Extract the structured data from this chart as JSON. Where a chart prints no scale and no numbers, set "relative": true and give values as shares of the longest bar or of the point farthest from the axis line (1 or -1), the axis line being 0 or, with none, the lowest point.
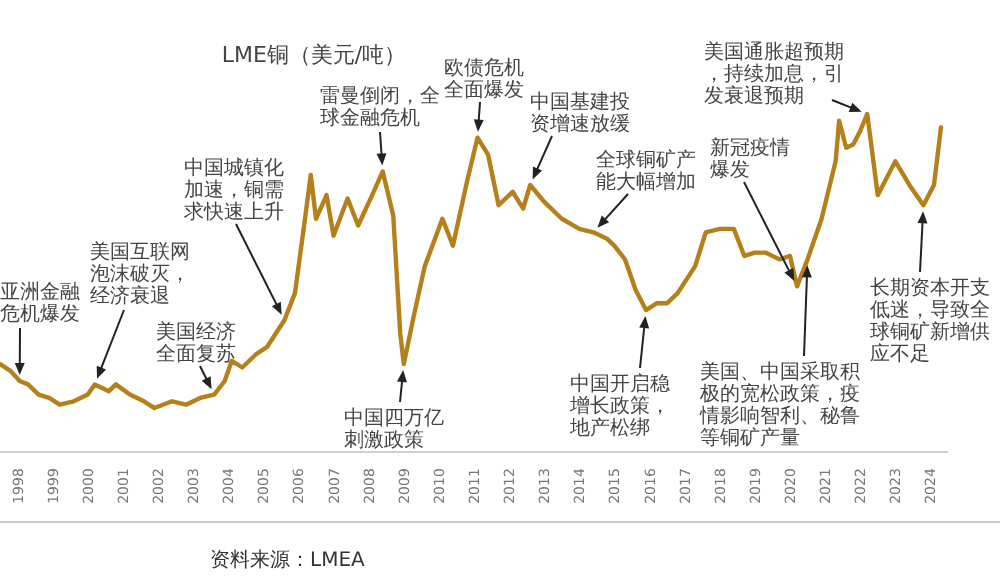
{
  "chart_data": {
    "type": "line",
    "relative": true,
    "title": "LME铜（美元/吨）",
    "color": "#b5801c",
    "x": [
      1997.5,
      1997.8,
      1998.06,
      1998.3,
      1998.6,
      1998.9,
      1999.2,
      1999.6,
      2000.0,
      2000.2,
      2000.6,
      2000.8,
      2001.2,
      2001.6,
      2001.9,
      2002.4,
      2002.8,
      2003.2,
      2003.6,
      2003.9,
      2004.1,
      2004.4,
      2004.8,
      2005.1,
      2005.6,
      2005.9,
      2006.2,
      2006.35,
      2006.5,
      2006.8,
      2007.0,
      2007.4,
      2007.7,
      2008.1,
      2008.4,
      2008.7,
      2008.9,
      2009.0,
      2009.3,
      2009.6,
      2010.1,
      2010.4,
      2010.8,
      2011.1,
      2011.4,
      2011.7,
      2012.1,
      2012.4,
      2012.6,
      2013.0,
      2013.5,
      2014.0,
      2014.4,
      2014.8,
      2015.0,
      2015.3,
      2015.6,
      2015.9,
      2016.2,
      2016.5,
      2016.8,
      2017.3,
      2017.6,
      2018.0,
      2018.4,
      2018.7,
      2019.0,
      2019.3,
      2019.7,
      2020.0,
      2020.2,
      2020.5,
      2020.9,
      2021.3,
      2021.4,
      2021.6,
      2021.8,
      2022.0,
      2022.2,
      2022.5,
      2022.8,
      2023.0,
      2023.4,
      2023.8,
      2024.1,
      2024.3
    ],
    "values": [
      0.26,
      0.24,
      0.21,
      0.2,
      0.17,
      0.16,
      0.14,
      0.15,
      0.17,
      0.2,
      0.18,
      0.2,
      0.17,
      0.15,
      0.13,
      0.15,
      0.14,
      0.16,
      0.17,
      0.21,
      0.27,
      0.25,
      0.29,
      0.31,
      0.39,
      0.47,
      0.7,
      0.82,
      0.69,
      0.76,
      0.64,
      0.75,
      0.67,
      0.76,
      0.83,
      0.7,
      0.35,
      0.26,
      0.41,
      0.55,
      0.69,
      0.61,
      0.8,
      0.93,
      0.88,
      0.73,
      0.77,
      0.72,
      0.79,
      0.74,
      0.69,
      0.66,
      0.65,
      0.63,
      0.61,
      0.57,
      0.48,
      0.42,
      0.44,
      0.44,
      0.47,
      0.55,
      0.65,
      0.66,
      0.66,
      0.58,
      0.59,
      0.59,
      0.57,
      0.58,
      0.49,
      0.57,
      0.69,
      0.86,
      0.98,
      0.9,
      0.91,
      0.95,
      1,
      0.76,
      0.82,
      0.86,
      0.79,
      0.73,
      0.79,
      0.96
    ],
    "xlim": [
      1997.5,
      2024.5
    ],
    "xticks": [
      1998,
      1999,
      2000,
      2001,
      2002,
      2003,
      2004,
      2005,
      2006,
      2007,
      2008,
      2009,
      2010,
      2011,
      2012,
      2013,
      2014,
      2015,
      2016,
      2017,
      2018,
      2019,
      2020,
      2021,
      2022,
      2023,
      2024
    ],
    "annotations": [
      {
        "text": "亚洲金融危机爆发",
        "x": 1998.06,
        "y": 0.21
      },
      {
        "text": "美国互联网泡沫破灭，经济衰退",
        "x": 2000.2,
        "y": 0.2
      },
      {
        "text": "美国经济全面复苏",
        "x": 2003.6,
        "y": 0.17
      },
      {
        "text": "中国城镇化加速，铜需求快速上升",
        "x": 2005.6,
        "y": 0.39
      },
      {
        "text": "雷曼倒闭，全球金融危机",
        "x": 2008.4,
        "y": 0.83
      },
      {
        "text": "欧债危机全面爆发",
        "x": 2011.1,
        "y": 0.93
      },
      {
        "text": "中国四万亿刺激政策",
        "x": 2009.0,
        "y": 0.26
      },
      {
        "text": "中国基建投资增速放缓",
        "x": 2012.6,
        "y": 0.79
      },
      {
        "text": "全球铜矿产能大幅增加",
        "x": 2014.4,
        "y": 0.65
      },
      {
        "text": "中国开启稳增长政策，地产松绑",
        "x": 2015.9,
        "y": 0.42
      },
      {
        "text": "新冠疫情爆发",
        "x": 2020.2,
        "y": 0.49
      },
      {
        "text": "美国通胀超预期，持续加息，引发衰退预期",
        "x": 2022.2,
        "y": 1
      },
      {
        "text": "美国、中国采取积极的宽松政策，疫情影响智利、秘鲁等铜矿产量",
        "x": 2020.5,
        "y": 0.57
      },
      {
        "text": "长期资本开支低迷，导致全球铜矿新增供应不足",
        "x": 2023.8,
        "y": 0.73
      },
      "资料来源：LMEA"
    ]
  }
}
